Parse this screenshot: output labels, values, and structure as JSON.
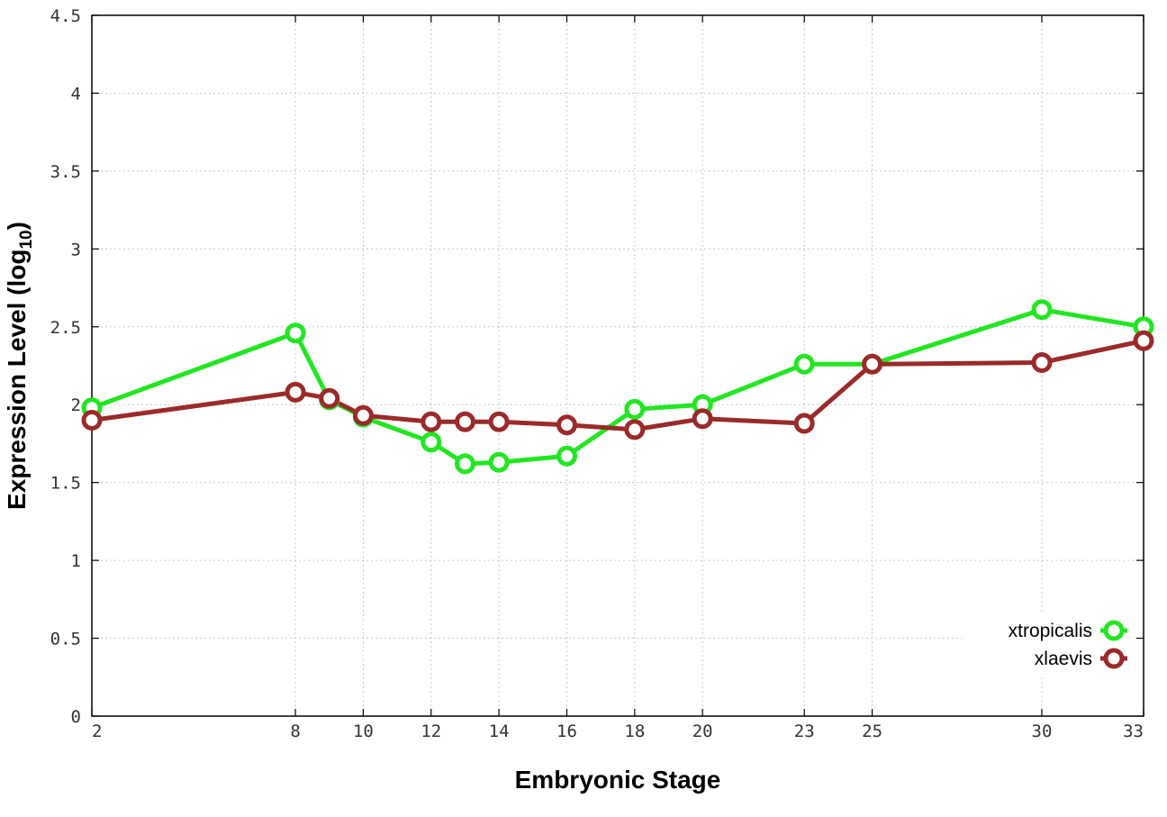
{
  "chart_data": {
    "type": "line",
    "xlabel": "Embryonic Stage",
    "ylabel_main": "Expression Level (log",
    "ylabel_sub": "10",
    "ylabel_close": ")",
    "xlim": [
      2,
      33
    ],
    "ylim": [
      0,
      4.5
    ],
    "x_ticks": [
      2,
      8,
      10,
      12,
      14,
      16,
      18,
      20,
      23,
      25,
      30,
      33
    ],
    "y_ticks": [
      0,
      0.5,
      1,
      1.5,
      2,
      2.5,
      3,
      3.5,
      4,
      4.5
    ],
    "x_tick_labels": [
      "2",
      "8",
      "10",
      "12",
      "14",
      "16",
      "18",
      "20",
      "23",
      "25",
      "30",
      "33"
    ],
    "y_tick_labels": [
      "0",
      "0.5",
      "1",
      "1.5",
      "2",
      "2.5",
      "3",
      "3.5",
      "4",
      "4.5"
    ],
    "grid": true,
    "legend_position": "bottom-right",
    "series": [
      {
        "name": "xtropicalis",
        "color": "#22e622",
        "x": [
          2,
          8,
          9,
          10,
          12,
          13,
          14,
          16,
          18,
          20,
          23,
          25,
          30,
          33
        ],
        "y": [
          1.98,
          2.46,
          2.03,
          1.92,
          1.76,
          1.62,
          1.63,
          1.67,
          1.97,
          2.0,
          2.26,
          2.26,
          2.61,
          2.5
        ]
      },
      {
        "name": "xlaevis",
        "color": "#9b2a2a",
        "x": [
          2,
          8,
          9,
          10,
          12,
          13,
          14,
          16,
          18,
          20,
          23,
          25,
          30,
          33
        ],
        "y": [
          1.9,
          2.08,
          2.04,
          1.93,
          1.89,
          1.89,
          1.89,
          1.87,
          1.84,
          1.91,
          1.88,
          2.26,
          2.27,
          2.41
        ]
      }
    ]
  }
}
